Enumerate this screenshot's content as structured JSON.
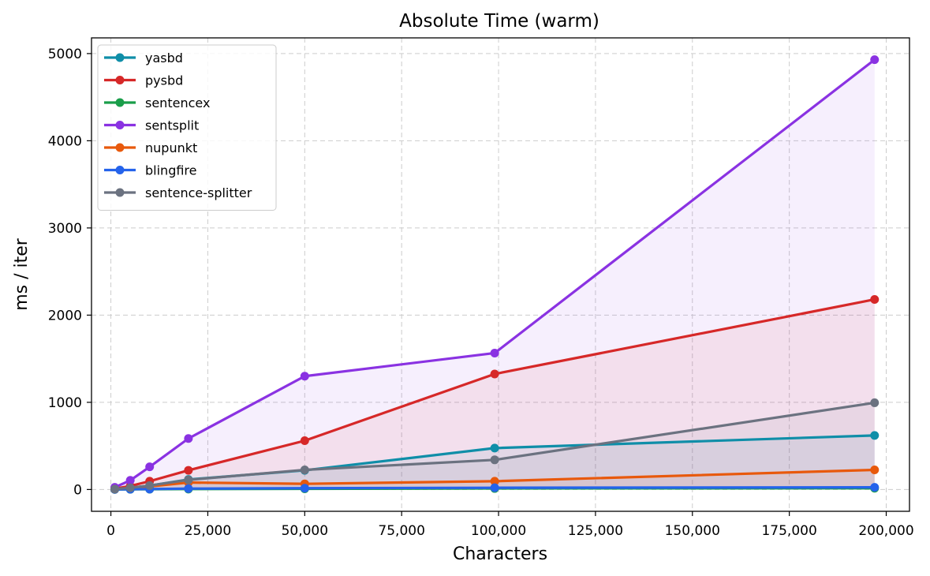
{
  "chart_data": {
    "type": "line",
    "title": "Absolute Time (warm)",
    "xlabel": "Characters",
    "ylabel": "ms / iter",
    "xlim": [
      -5000,
      206000
    ],
    "ylim": [
      -250,
      5180
    ],
    "xticks": [
      0,
      25000,
      50000,
      75000,
      100000,
      125000,
      150000,
      175000,
      200000
    ],
    "xtick_labels": [
      "0",
      "25,000",
      "50,000",
      "75,000",
      "100,000",
      "125,000",
      "150,000",
      "175,000",
      "200,000"
    ],
    "yticks": [
      0,
      1000,
      2000,
      3000,
      4000,
      5000
    ],
    "ytick_labels": [
      "0",
      "1000",
      "2000",
      "3000",
      "4000",
      "5000"
    ],
    "grid": true,
    "legend_position": "upper-left",
    "area_fill": true,
    "x": [
      1000,
      5000,
      10000,
      20000,
      50000,
      99000,
      197000
    ],
    "series": [
      {
        "name": "yasbd",
        "color": "#0f8ea8",
        "values": [
          5,
          20,
          45,
          115,
          220,
          475,
          620
        ]
      },
      {
        "name": "pysbd",
        "color": "#d62828",
        "values": [
          10,
          40,
          95,
          220,
          560,
          1325,
          2180
        ]
      },
      {
        "name": "sentencex",
        "color": "#1a9e4a",
        "values": [
          1,
          2,
          3,
          5,
          8,
          12,
          15
        ]
      },
      {
        "name": "sentsplit",
        "color": "#8a32e2",
        "values": [
          25,
          105,
          260,
          585,
          1300,
          1565,
          4930
        ]
      },
      {
        "name": "nupunkt",
        "color": "#e8590c",
        "values": [
          3,
          15,
          35,
          80,
          65,
          95,
          225
        ]
      },
      {
        "name": "blingfire",
        "color": "#2563eb",
        "values": [
          1,
          3,
          5,
          10,
          15,
          20,
          25
        ]
      },
      {
        "name": "sentence-splitter",
        "color": "#6b7280",
        "values": [
          5,
          20,
          45,
          110,
          225,
          340,
          995
        ]
      }
    ]
  }
}
